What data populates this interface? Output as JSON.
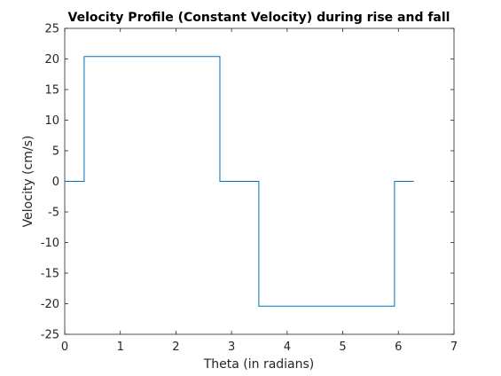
{
  "chart_data": {
    "type": "line",
    "title": "Velocity Profile (Constant Velocity) during rise and fall",
    "xlabel": "Theta (in radians)",
    "ylabel": "Velocity (cm/s)",
    "xlim": [
      0,
      7
    ],
    "ylim": [
      -25,
      25
    ],
    "xticks": [
      0,
      1,
      2,
      3,
      4,
      5,
      6,
      7
    ],
    "yticks": [
      -25,
      -20,
      -15,
      -10,
      -5,
      0,
      5,
      10,
      15,
      20,
      25
    ],
    "grid": false,
    "line_color": "#0072BD",
    "series": [
      {
        "x": [
          0,
          0.35,
          0.35,
          2.79,
          2.79,
          3.49,
          3.49,
          5.93,
          5.93,
          6.28
        ],
        "y": [
          0,
          0,
          20.4,
          20.4,
          0,
          0,
          -20.4,
          -20.4,
          0,
          0
        ]
      }
    ]
  }
}
